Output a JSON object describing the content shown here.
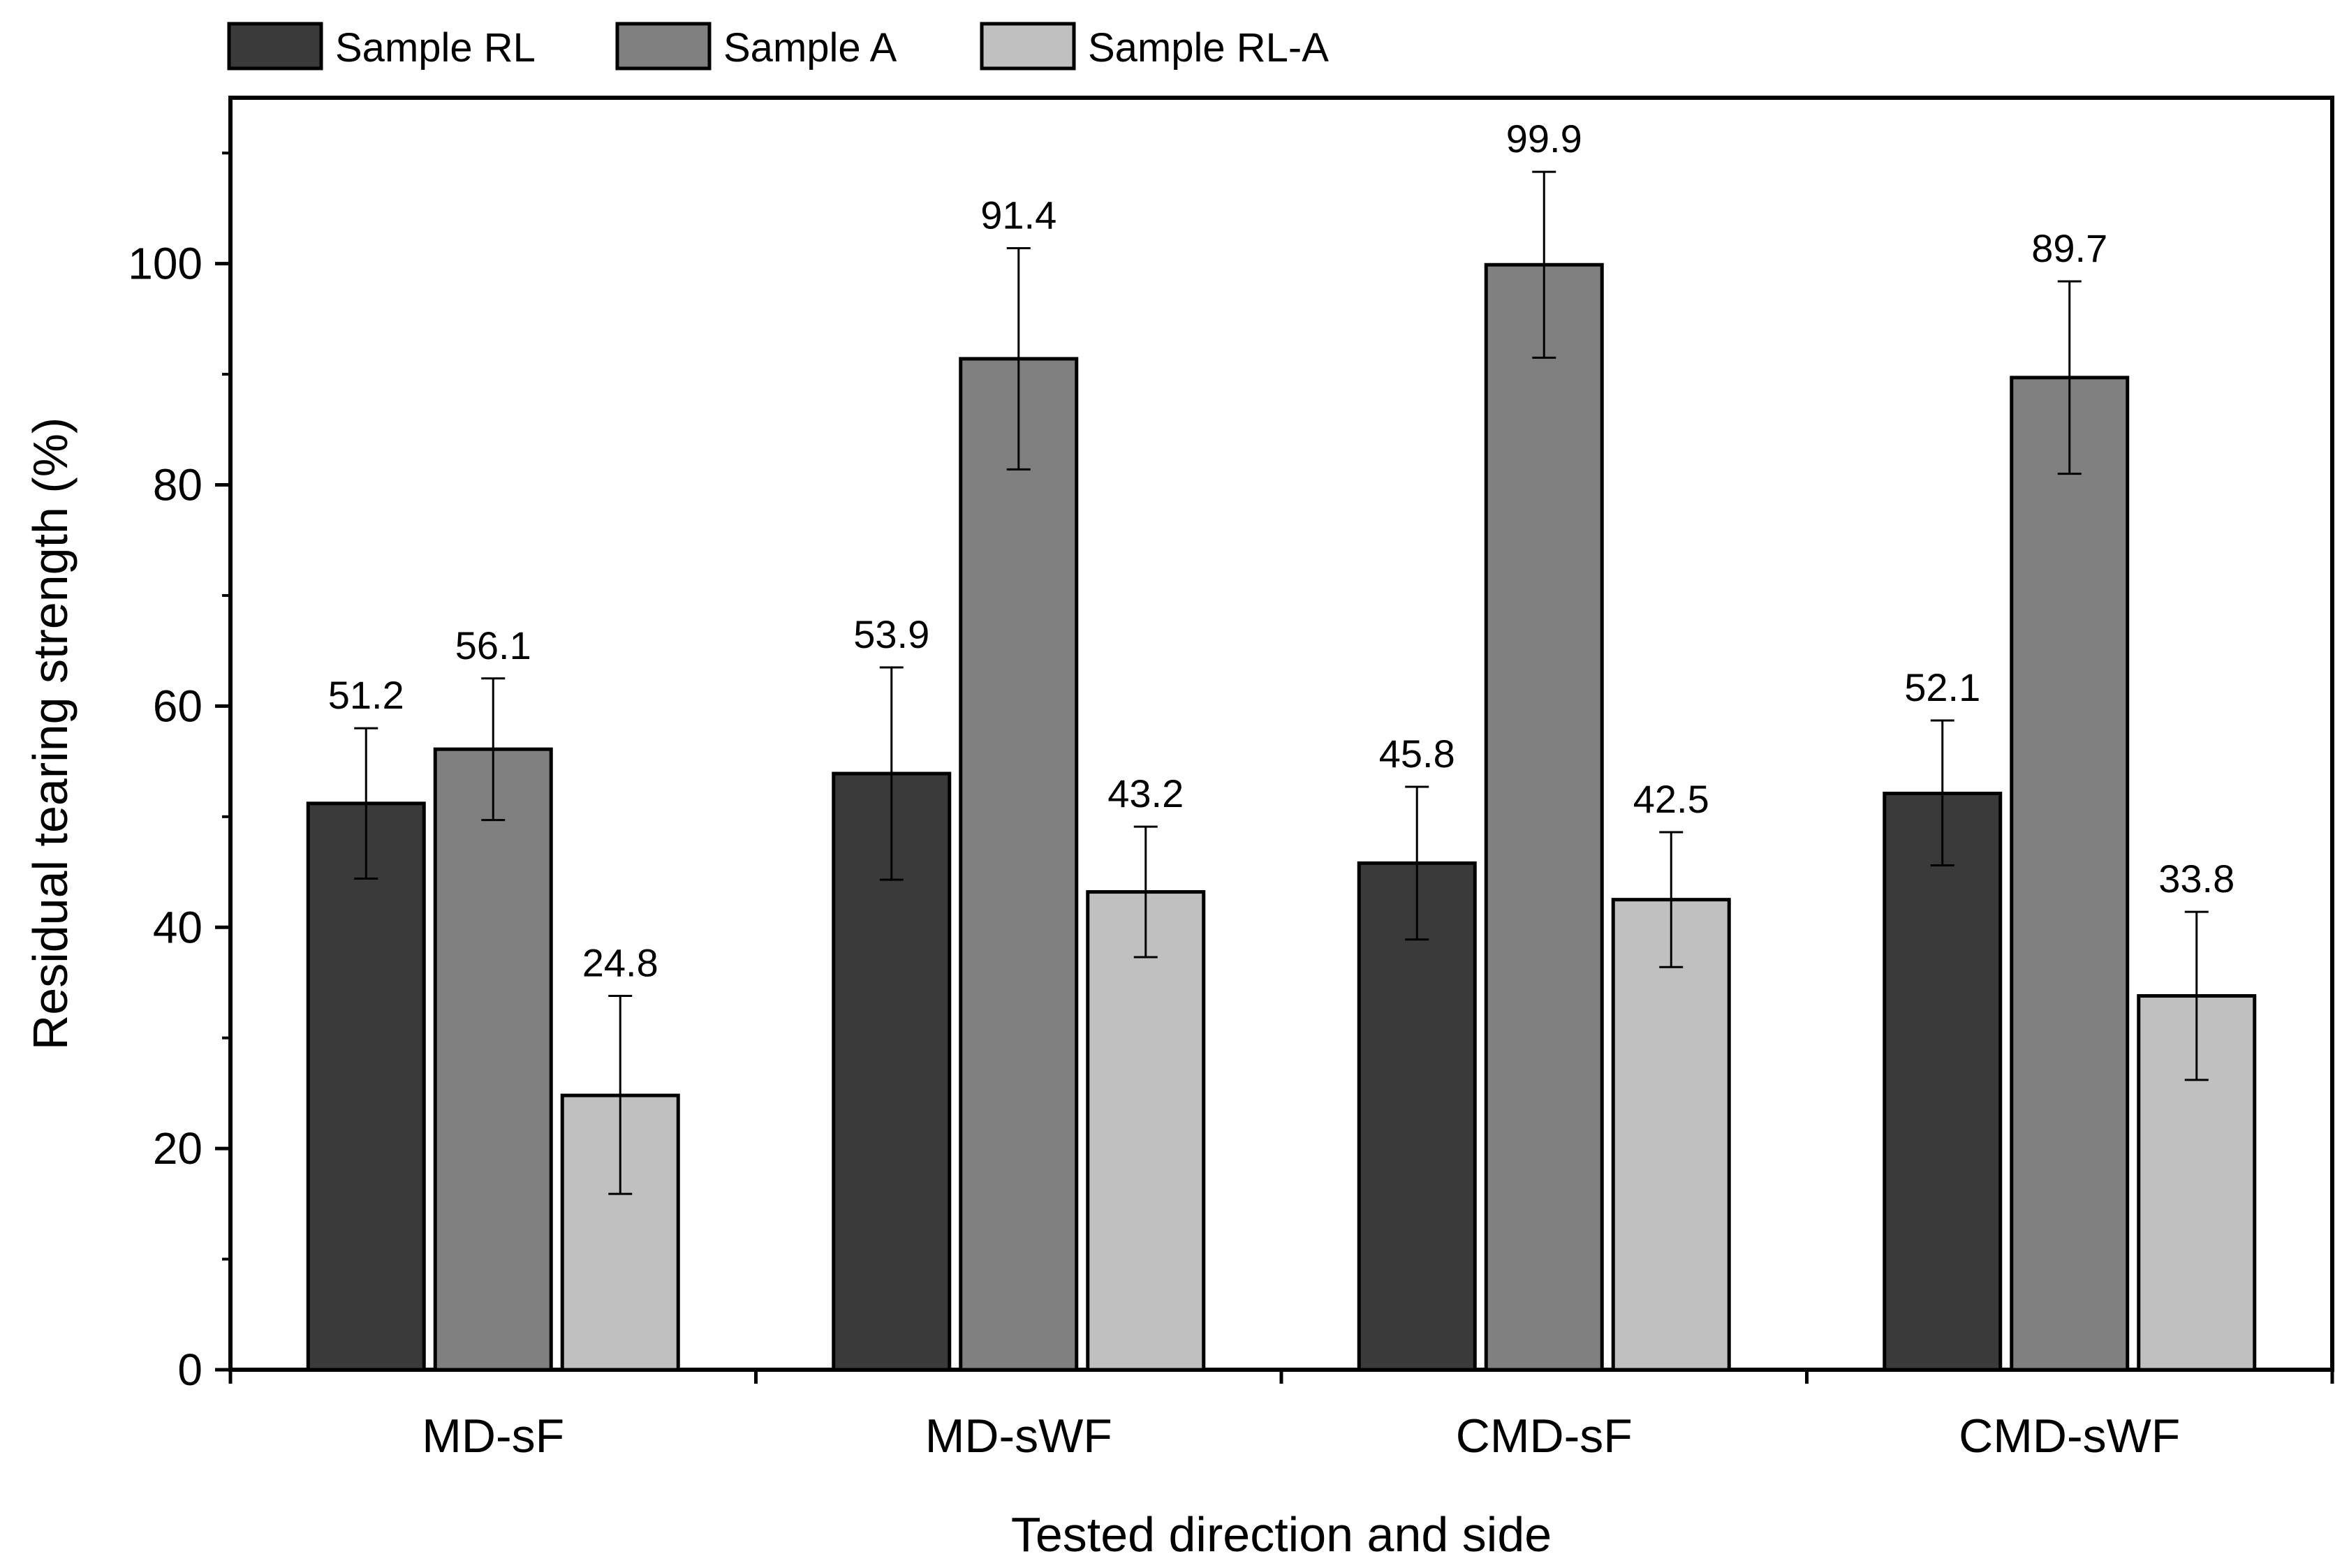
{
  "chart_data": {
    "type": "bar",
    "title": "",
    "xlabel": "Tested direction and side",
    "ylabel": "Residual tearing strength (%)",
    "ylim": [
      0,
      115
    ],
    "yticks": [
      0,
      20,
      40,
      60,
      80,
      100
    ],
    "grid": false,
    "legend_position": "top",
    "categories": [
      "MD-sF",
      "MD-sWF",
      "CMD-sF",
      "CMD-sWF"
    ],
    "series": [
      {
        "name": "Sample RL",
        "color": "#3a3a3a",
        "values": [
          51.2,
          53.9,
          45.8,
          52.1
        ],
        "error_low": [
          44.4,
          44.3,
          38.9,
          45.6
        ],
        "error_high": [
          58.0,
          63.5,
          52.7,
          58.7
        ],
        "labels": [
          "51.2",
          "53.9",
          "45.8",
          "52.1"
        ]
      },
      {
        "name": "Sample A",
        "color": "#808080",
        "values": [
          56.1,
          91.4,
          99.9,
          89.7
        ],
        "error_low": [
          49.7,
          81.4,
          91.5,
          81.0
        ],
        "error_high": [
          62.5,
          101.4,
          108.3,
          98.4
        ],
        "labels": [
          "56.1",
          "91.4",
          "99.9",
          "89.7"
        ]
      },
      {
        "name": "Sample RL-A",
        "color": "#c0c0c0",
        "values": [
          24.8,
          43.2,
          42.5,
          33.8
        ],
        "error_low": [
          15.9,
          37.3,
          36.4,
          26.2
        ],
        "error_high": [
          33.8,
          49.1,
          48.6,
          41.4
        ],
        "labels": [
          "24.8",
          "43.2",
          "42.5",
          "33.8"
        ]
      }
    ]
  }
}
